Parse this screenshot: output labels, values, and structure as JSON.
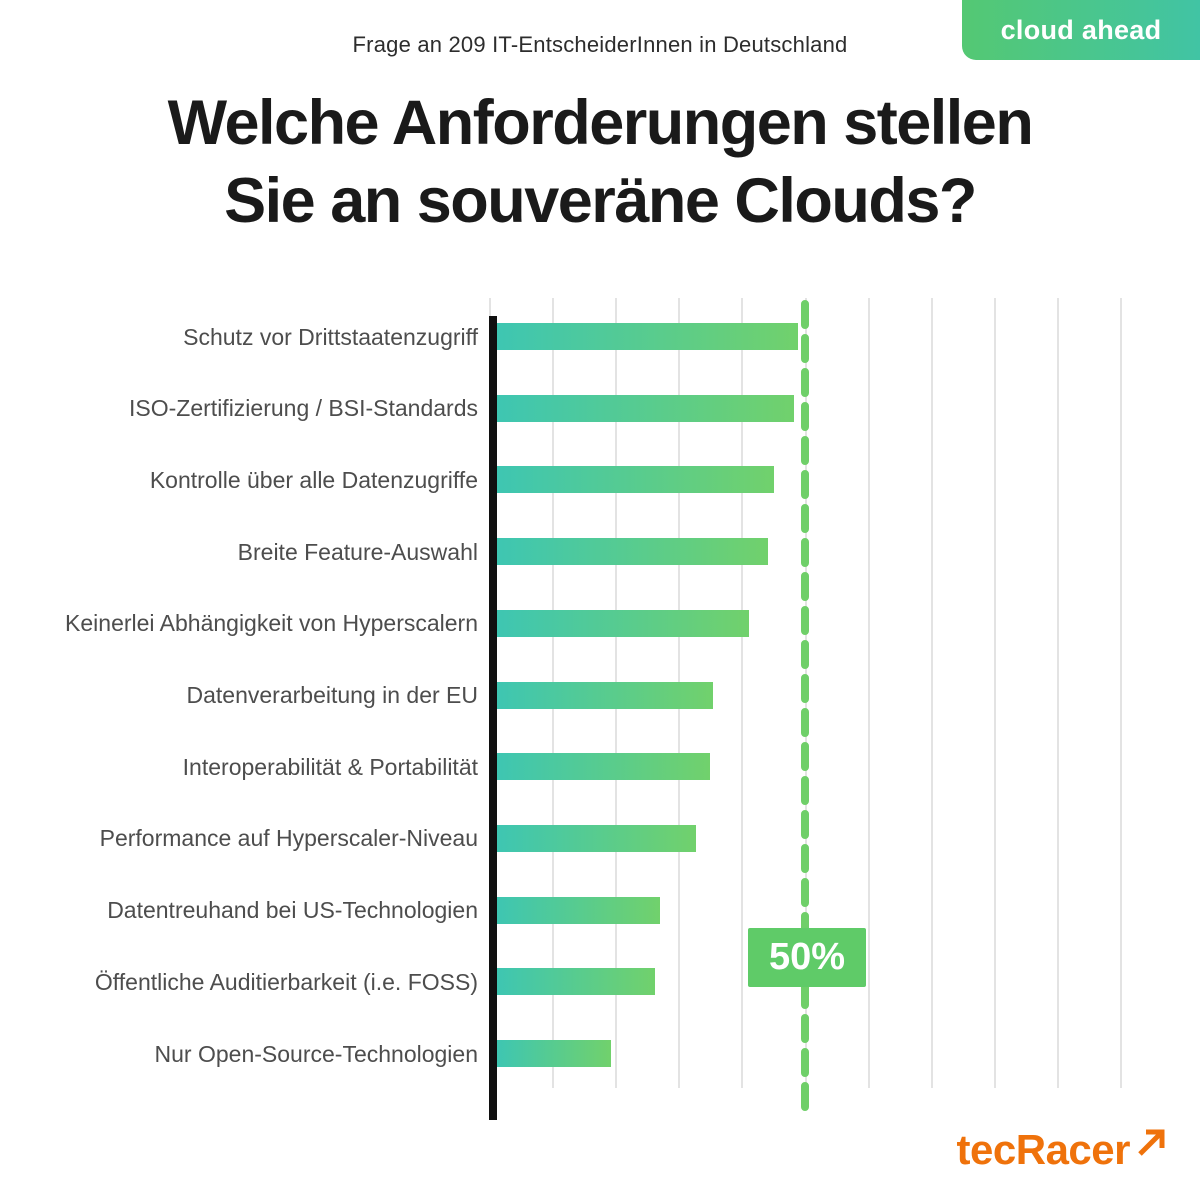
{
  "header": {
    "subtitle": "Frage an 209 IT-EntscheiderInnen in Deutschland",
    "badge_label": "cloud ahead",
    "title_line1": "Welche Anforderungen stellen",
    "title_line2": "Sie an souveräne Clouds?"
  },
  "chart_data": {
    "type": "bar",
    "orientation": "horizontal",
    "title": "Welche Anforderungen stellen Sie an souveräne Clouds?",
    "subtitle": "Frage an 209 IT-EntscheiderInnen in Deutschland",
    "unit": "%",
    "xlim": [
      0,
      100
    ],
    "gridline_interval": 10,
    "grid": true,
    "legend": false,
    "categories": [
      "Schutz vor Drittstaatenzugriff",
      "ISO-Zertifizierung / BSI-Standards",
      "Kontrolle über alle Datenzugriffe",
      "Breite Feature-Auswahl",
      "Keinerlei Abhängigkeit von Hyperscalern",
      "Datenverarbeitung in der EU",
      "Interoperabilität & Portabilität",
      "Performance auf Hyperscaler-Niveau",
      "Datentreuhand bei US-Technologien",
      "Öffentliche Auditierbarkeit (i.e. FOSS)",
      "Nur Open-Source-Technologien"
    ],
    "values": [
      48.8,
      48.2,
      45.0,
      44.1,
      41.1,
      35.3,
      34.8,
      32.7,
      27.0,
      26.2,
      19.2
    ],
    "reference_line": {
      "value": 50,
      "label": "50%"
    },
    "colors": {
      "bar_gradient_start": "#3ec6b2",
      "bar_gradient_end": "#71d16c",
      "reference_line": "#6fcf69",
      "reference_badge_bg": "#5fcb68",
      "axis": "#101010",
      "gridline": "#e3e3e3",
      "label_text": "#4d4d4d"
    }
  },
  "footer": {
    "logo_text": "tecRacer",
    "logo_color": "#ef720b",
    "logo_icon": "arrow-up-right"
  }
}
